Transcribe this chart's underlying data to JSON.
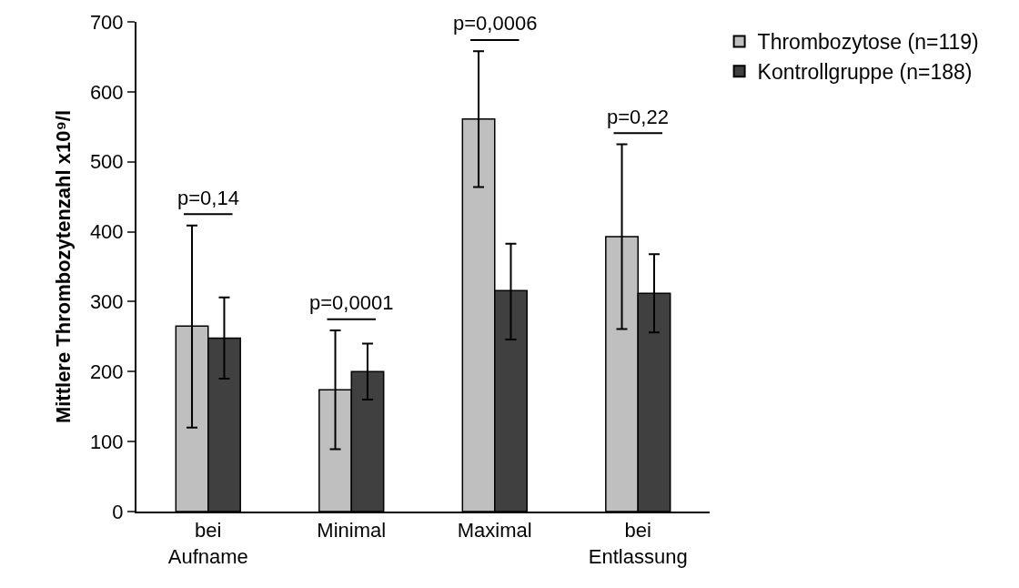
{
  "chart_data": {
    "type": "bar",
    "ylabel": "Mittlere Thrombozytenzahl x10⁹/l",
    "categories": [
      "bei\nAufname",
      "Minimal",
      "Maximal",
      "bei\nEntlassung"
    ],
    "series": [
      {
        "name": "Thrombozytose (n=119)",
        "color": "#bfbfbf",
        "values": [
          265,
          174,
          561,
          393
        ],
        "errors": [
          [
            120,
            409
          ],
          [
            89,
            259
          ],
          [
            464,
            658
          ],
          [
            261,
            525
          ]
        ]
      },
      {
        "name": "Kontrollgruppe (n=188)",
        "color": "#404040",
        "values": [
          248,
          200,
          316,
          312
        ],
        "errors": [
          [
            190,
            306
          ],
          [
            160,
            240
          ],
          [
            246,
            383
          ],
          [
            256,
            368
          ]
        ]
      }
    ],
    "ylim": [
      0,
      700
    ],
    "yticks": [
      0,
      100,
      200,
      300,
      400,
      500,
      600,
      700
    ],
    "annotations": [
      "p=0,14",
      "p=0,0001",
      "p=0,0006",
      "p=0,22"
    ],
    "legend": "top right"
  }
}
